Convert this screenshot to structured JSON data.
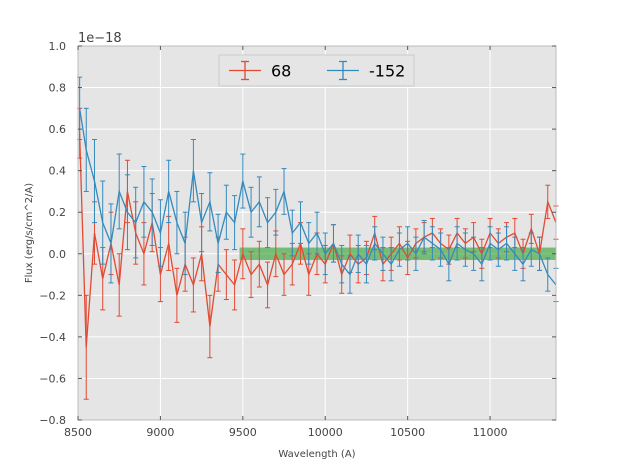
{
  "chart_data": {
    "type": "line",
    "title": "",
    "xlabel": "Wavelength (A)",
    "ylabel": "Flux (erg/s/cm^2/A)",
    "y_offset_label": "1e−18",
    "xlim": [
      8500,
      11400
    ],
    "ylim": [
      -0.8,
      1.0
    ],
    "x_ticks": [
      8500,
      9000,
      9500,
      10000,
      10500,
      11000
    ],
    "x_tick_labels": [
      "8500",
      "9000",
      "9500",
      "10000",
      "10500",
      "11000"
    ],
    "y_ticks": [
      -0.8,
      -0.6,
      -0.4,
      -0.2,
      0.0,
      0.2,
      0.4,
      0.6,
      0.8,
      1.0
    ],
    "y_tick_labels": [
      "−0.8",
      "−0.6",
      "−0.4",
      "−0.2",
      "0.0",
      "0.2",
      "0.4",
      "0.6",
      "0.8",
      "1.0"
    ],
    "grid": true,
    "background_color": "#e5e5e5",
    "legend_position": "top-center",
    "band": {
      "x_start": 9480,
      "x_end": 11400,
      "y_low": -0.03,
      "y_high": 0.03,
      "color": "#2ca02c"
    },
    "series": [
      {
        "name": "68",
        "color": "#e24a33",
        "x": [
          8510,
          8550,
          8600,
          8650,
          8700,
          8750,
          8800,
          8850,
          8900,
          8950,
          9000,
          9050,
          9100,
          9150,
          9200,
          9250,
          9300,
          9350,
          9400,
          9450,
          9500,
          9550,
          9600,
          9650,
          9700,
          9750,
          9800,
          9850,
          9900,
          9950,
          10000,
          10050,
          10100,
          10150,
          10200,
          10250,
          10300,
          10350,
          10400,
          10450,
          10500,
          10550,
          10600,
          10650,
          10700,
          10750,
          10800,
          10850,
          10900,
          10950,
          11000,
          11050,
          11100,
          11150,
          11200,
          11250,
          11300,
          11350,
          11400
        ],
        "y": [
          0.58,
          -0.45,
          0.1,
          -0.12,
          0.05,
          -0.15,
          0.3,
          0.1,
          0.0,
          0.15,
          -0.1,
          0.05,
          -0.2,
          -0.05,
          -0.15,
          0.0,
          -0.35,
          -0.05,
          -0.1,
          -0.15,
          0.0,
          -0.1,
          -0.05,
          -0.15,
          0.0,
          -0.1,
          -0.05,
          0.05,
          -0.1,
          0.0,
          -0.05,
          0.05,
          -0.1,
          0.0,
          -0.05,
          -0.02,
          0.1,
          -0.05,
          0.0,
          0.05,
          -0.02,
          0.05,
          0.08,
          0.1,
          0.05,
          0.02,
          0.1,
          0.05,
          0.08,
          0.0,
          0.1,
          0.05,
          0.08,
          0.1,
          0.0,
          0.12,
          0.0,
          0.25,
          0.15
        ],
        "err": [
          0.12,
          0.25,
          0.15,
          0.15,
          0.15,
          0.15,
          0.15,
          0.15,
          0.15,
          0.14,
          0.13,
          0.13,
          0.13,
          0.13,
          0.13,
          0.13,
          0.15,
          0.13,
          0.12,
          0.12,
          0.12,
          0.11,
          0.11,
          0.11,
          0.11,
          0.1,
          0.1,
          0.1,
          0.1,
          0.1,
          0.09,
          0.09,
          0.09,
          0.09,
          0.09,
          0.08,
          0.08,
          0.08,
          0.08,
          0.08,
          0.08,
          0.07,
          0.07,
          0.07,
          0.07,
          0.07,
          0.07,
          0.07,
          0.07,
          0.07,
          0.07,
          0.07,
          0.07,
          0.07,
          0.07,
          0.07,
          0.08,
          0.08,
          0.08
        ]
      },
      {
        "name": "-152",
        "color": "#348abd",
        "x": [
          8510,
          8550,
          8600,
          8650,
          8700,
          8750,
          8800,
          8850,
          8900,
          8950,
          9000,
          9050,
          9100,
          9150,
          9200,
          9250,
          9300,
          9350,
          9400,
          9450,
          9500,
          9550,
          9600,
          9650,
          9700,
          9750,
          9800,
          9850,
          9900,
          9950,
          10000,
          10050,
          10100,
          10150,
          10200,
          10250,
          10300,
          10350,
          10400,
          10450,
          10500,
          10550,
          10600,
          10650,
          10700,
          10750,
          10800,
          10850,
          10900,
          10950,
          11000,
          11050,
          11100,
          11150,
          11200,
          11250,
          11300,
          11350,
          11400
        ],
        "y": [
          0.7,
          0.5,
          0.35,
          0.15,
          0.05,
          0.3,
          0.2,
          0.15,
          0.25,
          0.2,
          0.1,
          0.3,
          0.15,
          0.05,
          0.4,
          0.15,
          0.25,
          0.05,
          0.2,
          0.15,
          0.35,
          0.2,
          0.25,
          0.15,
          0.2,
          0.3,
          0.1,
          0.15,
          0.05,
          0.1,
          0.0,
          0.05,
          -0.05,
          -0.1,
          0.0,
          -0.05,
          0.05,
          0.0,
          -0.05,
          0.02,
          0.05,
          0.0,
          0.08,
          0.05,
          0.02,
          -0.05,
          0.05,
          0.02,
          0.0,
          -0.05,
          0.05,
          0.02,
          0.05,
          0.0,
          -0.05,
          0.02,
          0.0,
          -0.1,
          -0.15
        ],
        "err": [
          0.15,
          0.2,
          0.2,
          0.2,
          0.19,
          0.18,
          0.18,
          0.17,
          0.17,
          0.16,
          0.16,
          0.15,
          0.15,
          0.15,
          0.15,
          0.14,
          0.14,
          0.14,
          0.13,
          0.13,
          0.13,
          0.12,
          0.12,
          0.12,
          0.11,
          0.11,
          0.11,
          0.1,
          0.1,
          0.1,
          0.1,
          0.09,
          0.09,
          0.09,
          0.09,
          0.09,
          0.08,
          0.08,
          0.08,
          0.08,
          0.08,
          0.08,
          0.08,
          0.08,
          0.08,
          0.08,
          0.08,
          0.08,
          0.08,
          0.08,
          0.08,
          0.08,
          0.08,
          0.08,
          0.08,
          0.08,
          0.08,
          0.08,
          0.08
        ]
      }
    ]
  }
}
